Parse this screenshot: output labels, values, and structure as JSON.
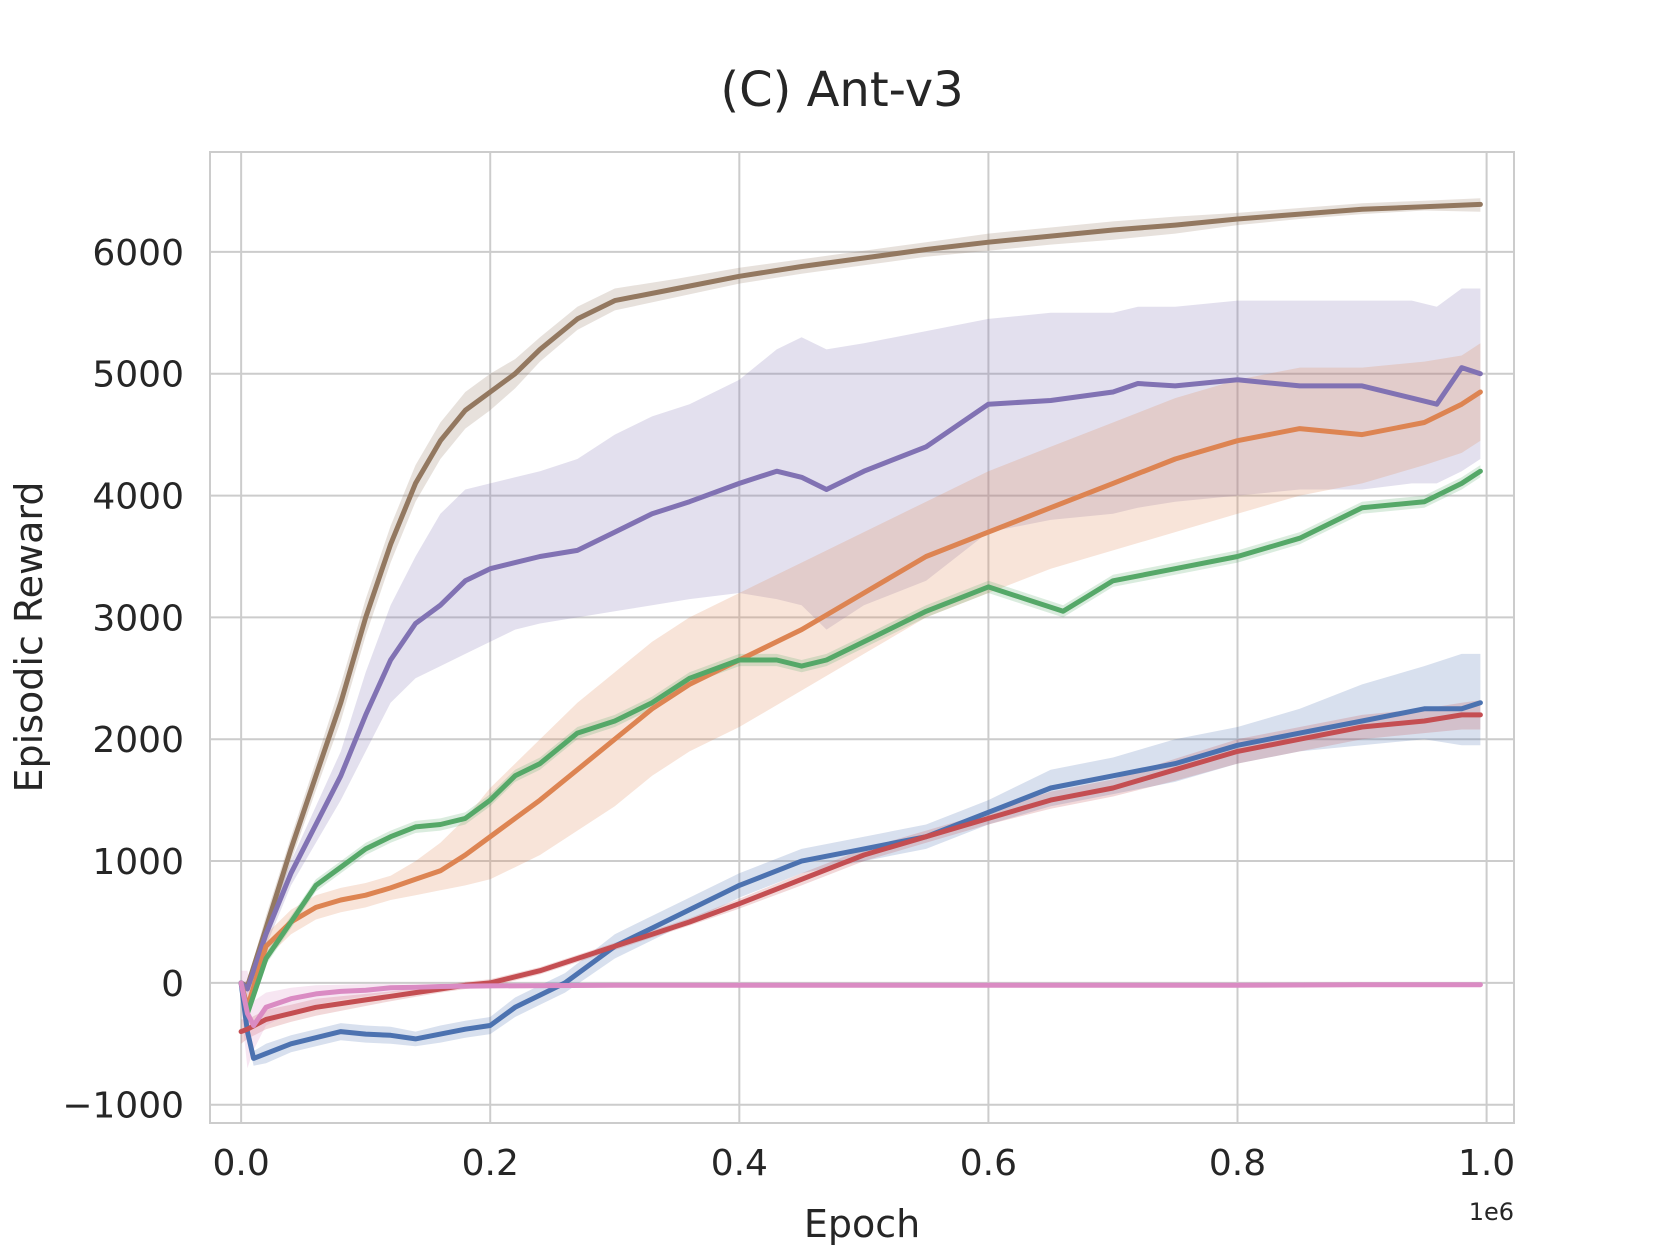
{
  "chart_data": {
    "type": "line",
    "title": "(C) Ant-v3",
    "xlabel": "Epoch",
    "ylabel": "Episodic Reward",
    "x_offset_label": "1e6",
    "xlim": [
      -0.025,
      1.022
    ],
    "ylim": [
      -1150,
      6820
    ],
    "xticks": [
      0.0,
      0.2,
      0.4,
      0.6,
      0.8,
      1.0
    ],
    "xtick_labels": [
      "0.0",
      "0.2",
      "0.4",
      "0.6",
      "0.8",
      "1.0"
    ],
    "yticks": [
      -1000,
      0,
      1000,
      2000,
      3000,
      4000,
      5000,
      6000
    ],
    "ytick_labels": [
      "−1000",
      "0",
      "1000",
      "2000",
      "3000",
      "4000",
      "5000",
      "6000"
    ],
    "grid": true,
    "legend": "none",
    "series": [
      {
        "name": "brown",
        "color": "#937860",
        "x": [
          0,
          0.005,
          0.02,
          0.04,
          0.06,
          0.08,
          0.1,
          0.12,
          0.14,
          0.16,
          0.18,
          0.2,
          0.22,
          0.24,
          0.27,
          0.3,
          0.35,
          0.4,
          0.45,
          0.5,
          0.55,
          0.6,
          0.65,
          0.7,
          0.75,
          0.8,
          0.85,
          0.9,
          0.95,
          0.995
        ],
        "y": [
          0,
          -30,
          450,
          1100,
          1700,
          2300,
          3000,
          3600,
          4100,
          4450,
          4700,
          4850,
          5000,
          5200,
          5450,
          5600,
          5700,
          5800,
          5880,
          5950,
          6020,
          6080,
          6130,
          6180,
          6220,
          6270,
          6310,
          6350,
          6370,
          6390
        ],
        "lower": [
          0,
          -80,
          350,
          1000,
          1580,
          2150,
          2850,
          3450,
          3950,
          4300,
          4550,
          4700,
          4880,
          5100,
          5360,
          5520,
          5630,
          5740,
          5820,
          5890,
          5960,
          6010,
          6060,
          6100,
          6150,
          6220,
          6270,
          6310,
          6340,
          6330
        ],
        "upper": [
          0,
          20,
          550,
          1200,
          1820,
          2450,
          3150,
          3750,
          4250,
          4600,
          4850,
          5000,
          5120,
          5300,
          5550,
          5700,
          5780,
          5870,
          5940,
          6010,
          6080,
          6150,
          6200,
          6250,
          6290,
          6320,
          6360,
          6400,
          6420,
          6440
        ]
      },
      {
        "name": "purple",
        "color": "#8172b3",
        "x": [
          0,
          0.005,
          0.02,
          0.04,
          0.06,
          0.08,
          0.1,
          0.12,
          0.14,
          0.16,
          0.18,
          0.2,
          0.22,
          0.24,
          0.27,
          0.3,
          0.33,
          0.36,
          0.4,
          0.43,
          0.45,
          0.47,
          0.5,
          0.55,
          0.6,
          0.65,
          0.7,
          0.72,
          0.75,
          0.8,
          0.85,
          0.9,
          0.94,
          0.96,
          0.98,
          0.995
        ],
        "y": [
          0,
          -50,
          400,
          900,
          1300,
          1700,
          2200,
          2650,
          2950,
          3100,
          3300,
          3400,
          3450,
          3500,
          3550,
          3700,
          3850,
          3950,
          4100,
          4200,
          4150,
          4050,
          4200,
          4400,
          4750,
          4780,
          4850,
          4920,
          4900,
          4950,
          4900,
          4900,
          4800,
          4750,
          5050,
          5000
        ],
        "lower": [
          0,
          -100,
          300,
          800,
          1150,
          1500,
          1900,
          2300,
          2500,
          2600,
          2700,
          2800,
          2900,
          2950,
          3000,
          3050,
          3100,
          3150,
          3200,
          3150,
          3100,
          2900,
          3100,
          3300,
          3700,
          3800,
          3850,
          3900,
          3950,
          4000,
          4050,
          4050,
          4100,
          4100,
          4200,
          4300
        ],
        "upper": [
          0,
          0,
          500,
          1000,
          1450,
          1900,
          2550,
          3100,
          3500,
          3850,
          4050,
          4100,
          4150,
          4200,
          4300,
          4500,
          4650,
          4750,
          4950,
          5200,
          5300,
          5200,
          5250,
          5350,
          5450,
          5500,
          5500,
          5550,
          5550,
          5600,
          5600,
          5600,
          5600,
          5550,
          5700,
          5700
        ]
      },
      {
        "name": "orange",
        "color": "#dd8452",
        "x": [
          0,
          0.005,
          0.02,
          0.04,
          0.06,
          0.08,
          0.1,
          0.12,
          0.14,
          0.16,
          0.18,
          0.2,
          0.22,
          0.24,
          0.27,
          0.3,
          0.33,
          0.36,
          0.4,
          0.45,
          0.5,
          0.55,
          0.6,
          0.65,
          0.7,
          0.75,
          0.8,
          0.85,
          0.9,
          0.95,
          0.98,
          0.995
        ],
        "y": [
          0,
          -200,
          300,
          500,
          620,
          680,
          720,
          780,
          850,
          920,
          1050,
          1200,
          1350,
          1500,
          1750,
          2000,
          2250,
          2450,
          2650,
          2900,
          3200,
          3500,
          3700,
          3900,
          4100,
          4300,
          4450,
          4550,
          4500,
          4600,
          4750,
          4850
        ],
        "lower": [
          0,
          -300,
          200,
          400,
          520,
          580,
          620,
          680,
          720,
          760,
          800,
          850,
          950,
          1050,
          1250,
          1450,
          1700,
          1900,
          2100,
          2400,
          2700,
          3000,
          3200,
          3400,
          3550,
          3700,
          3850,
          4000,
          4100,
          4250,
          4350,
          4450
        ],
        "upper": [
          0,
          -100,
          400,
          600,
          720,
          780,
          820,
          880,
          1000,
          1150,
          1350,
          1600,
          1800,
          2000,
          2300,
          2550,
          2800,
          3000,
          3200,
          3450,
          3700,
          3950,
          4200,
          4400,
          4600,
          4800,
          4950,
          5050,
          5050,
          5100,
          5150,
          5250
        ]
      },
      {
        "name": "green",
        "color": "#55a868",
        "x": [
          0,
          0.005,
          0.02,
          0.04,
          0.06,
          0.08,
          0.1,
          0.12,
          0.14,
          0.16,
          0.18,
          0.2,
          0.22,
          0.24,
          0.27,
          0.3,
          0.33,
          0.36,
          0.4,
          0.43,
          0.45,
          0.47,
          0.5,
          0.55,
          0.6,
          0.63,
          0.66,
          0.7,
          0.75,
          0.8,
          0.85,
          0.9,
          0.95,
          0.98,
          0.995
        ],
        "y": [
          0,
          -250,
          200,
          500,
          800,
          950,
          1100,
          1200,
          1280,
          1300,
          1350,
          1500,
          1700,
          1800,
          2050,
          2150,
          2300,
          2500,
          2650,
          2650,
          2600,
          2650,
          2800,
          3050,
          3250,
          3150,
          3050,
          3300,
          3400,
          3500,
          3650,
          3900,
          3950,
          4100,
          4200
        ],
        "lower": [
          0,
          -300,
          150,
          450,
          750,
          900,
          1050,
          1150,
          1230,
          1250,
          1300,
          1450,
          1650,
          1750,
          2000,
          2100,
          2250,
          2450,
          2600,
          2600,
          2550,
          2600,
          2750,
          3000,
          3200,
          3100,
          3000,
          3250,
          3350,
          3450,
          3600,
          3850,
          3900,
          4050,
          4150
        ],
        "upper": [
          0,
          -200,
          250,
          550,
          850,
          1000,
          1150,
          1250,
          1330,
          1350,
          1400,
          1550,
          1750,
          1850,
          2100,
          2200,
          2350,
          2550,
          2700,
          2700,
          2650,
          2700,
          2850,
          3100,
          3300,
          3200,
          3100,
          3350,
          3450,
          3550,
          3700,
          3950,
          4000,
          4150,
          4250
        ]
      },
      {
        "name": "blue",
        "color": "#4c72b0",
        "x": [
          0,
          0.005,
          0.01,
          0.02,
          0.04,
          0.06,
          0.08,
          0.1,
          0.12,
          0.14,
          0.16,
          0.18,
          0.2,
          0.22,
          0.24,
          0.26,
          0.28,
          0.3,
          0.33,
          0.36,
          0.4,
          0.45,
          0.5,
          0.55,
          0.6,
          0.65,
          0.7,
          0.75,
          0.8,
          0.85,
          0.9,
          0.95,
          0.98,
          0.995
        ],
        "y": [
          0,
          -400,
          -620,
          -580,
          -500,
          -450,
          -400,
          -420,
          -430,
          -460,
          -420,
          -380,
          -350,
          -200,
          -100,
          0,
          150,
          300,
          450,
          600,
          800,
          1000,
          1100,
          1200,
          1400,
          1600,
          1700,
          1800,
          1950,
          2050,
          2150,
          2250,
          2250,
          2300
        ],
        "lower": [
          0,
          -450,
          -680,
          -660,
          -570,
          -520,
          -470,
          -490,
          -500,
          -520,
          -490,
          -450,
          -420,
          -280,
          -180,
          -80,
          60,
          200,
          350,
          500,
          700,
          900,
          1000,
          1100,
          1300,
          1450,
          1550,
          1650,
          1800,
          1900,
          1950,
          2000,
          1950,
          1950
        ],
        "upper": [
          0,
          -350,
          -560,
          -500,
          -430,
          -380,
          -330,
          -350,
          -360,
          -400,
          -350,
          -310,
          -280,
          -120,
          -20,
          80,
          240,
          400,
          550,
          700,
          900,
          1100,
          1200,
          1300,
          1500,
          1750,
          1850,
          2000,
          2100,
          2250,
          2450,
          2600,
          2700,
          2700
        ]
      },
      {
        "name": "red",
        "color": "#c44e52",
        "x": [
          0,
          0.005,
          0.02,
          0.04,
          0.06,
          0.08,
          0.1,
          0.12,
          0.14,
          0.16,
          0.18,
          0.2,
          0.22,
          0.24,
          0.27,
          0.3,
          0.33,
          0.36,
          0.4,
          0.45,
          0.5,
          0.55,
          0.6,
          0.65,
          0.7,
          0.75,
          0.8,
          0.85,
          0.9,
          0.95,
          0.98,
          0.995
        ],
        "y": [
          -400,
          -380,
          -300,
          -250,
          -200,
          -170,
          -140,
          -110,
          -80,
          -50,
          -20,
          0,
          50,
          100,
          200,
          300,
          400,
          500,
          650,
          850,
          1050,
          1200,
          1350,
          1500,
          1600,
          1750,
          1900,
          2000,
          2100,
          2150,
          2200,
          2200
        ],
        "lower": [
          -500,
          -460,
          -380,
          -320,
          -270,
          -230,
          -190,
          -150,
          -115,
          -80,
          -50,
          -30,
          20,
          70,
          170,
          270,
          370,
          470,
          610,
          800,
          1000,
          1150,
          1300,
          1430,
          1530,
          1660,
          1800,
          1900,
          2000,
          2050,
          2080,
          2080
        ],
        "upper": [
          -300,
          -300,
          -220,
          -180,
          -130,
          -110,
          -90,
          -70,
          -45,
          -20,
          10,
          30,
          80,
          130,
          230,
          330,
          430,
          530,
          690,
          900,
          1100,
          1250,
          1400,
          1570,
          1670,
          1840,
          2000,
          2100,
          2200,
          2250,
          2300,
          2320
        ]
      },
      {
        "name": "pink",
        "color": "#da8bc3",
        "x": [
          0,
          0.005,
          0.01,
          0.02,
          0.04,
          0.06,
          0.08,
          0.1,
          0.12,
          0.14,
          0.16,
          0.2,
          0.3,
          0.4,
          0.5,
          0.6,
          0.7,
          0.8,
          0.9,
          0.995
        ],
        "y": [
          0,
          -250,
          -350,
          -200,
          -130,
          -90,
          -70,
          -60,
          -40,
          -35,
          -30,
          -25,
          -20,
          -20,
          -20,
          -20,
          -20,
          -20,
          -15,
          -15
        ],
        "lower": [
          -200,
          -700,
          -550,
          -350,
          -250,
          -180,
          -140,
          -110,
          -80,
          -60,
          -50,
          -40,
          -30,
          -30,
          -30,
          -30,
          -30,
          -30,
          -25,
          -25
        ],
        "upper": [
          100,
          100,
          -150,
          -80,
          -40,
          -20,
          -15,
          -10,
          -10,
          -15,
          -15,
          -12,
          -10,
          -10,
          -10,
          -10,
          -10,
          -10,
          -8,
          -8
        ]
      }
    ]
  }
}
